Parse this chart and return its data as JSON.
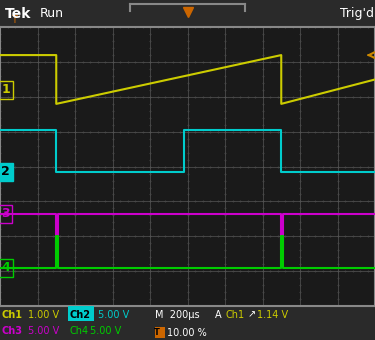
{
  "bg_color": "#1a1a1a",
  "grid_color": "#555555",
  "screen_bg": "#1a1a1a",
  "border_color": "#888888",
  "header_bg": "#2a2a2a",
  "footer_bg": "#1a1a1a",
  "tek_color": "#ffffff",
  "run_color": "#ffffff",
  "trigD_color": "#ffffff",
  "ch1_color": "#cccc00",
  "ch2_color": "#00cccc",
  "ch3_color": "#cc00cc",
  "ch4_color": "#00cc00",
  "ch1_label": "Ch1",
  "ch2_label": "Ch2",
  "ch3_label": "Ch3",
  "ch4_label": "Ch4",
  "ch1_scale": "1.00 V",
  "ch2_scale": "5.00 V",
  "ch3_scale": "5.00 V",
  "ch4_scale": "5.00 V",
  "time_scale": "M 200μs",
  "trig_label": "A  Ch1",
  "trig_slope": "↗",
  "trig_level": "1.14 V",
  "percent_label": "10.00 %",
  "n_hdivs": 10,
  "n_vdivs": 8,
  "title_text": "Run",
  "trigD_text": "Trig'd"
}
